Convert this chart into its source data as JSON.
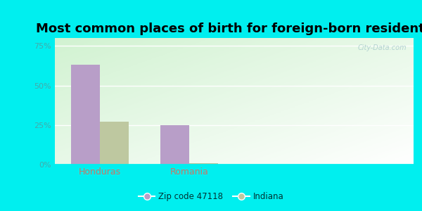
{
  "title": "Most common places of birth for foreign-born residents",
  "categories": [
    "Honduras",
    "Romania"
  ],
  "series": [
    {
      "label": "Zip code 47118",
      "values": [
        63,
        25
      ],
      "color": "#b89ec8"
    },
    {
      "label": "Indiana",
      "values": [
        27,
        1
      ],
      "color": "#bec8a0"
    }
  ],
  "ylim": [
    0,
    0.8
  ],
  "yticks": [
    0,
    0.25,
    0.5,
    0.75
  ],
  "ytick_labels": [
    "0%",
    "25%",
    "50%",
    "75%"
  ],
  "bar_width": 0.32,
  "background_outer": "#00efef",
  "title_fontsize": 13,
  "axis_label_color": "#cc7766",
  "ytick_color": "#44aaaa",
  "watermark": "City-Data.com",
  "legend_color": "#003333"
}
